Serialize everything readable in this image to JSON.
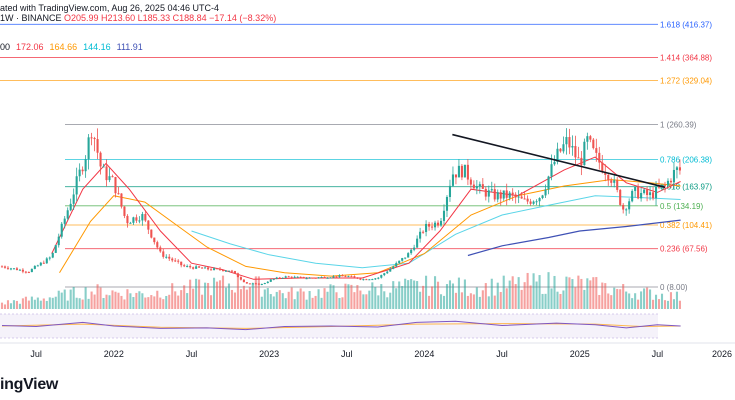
{
  "header": {
    "source": "ated with TradingView.com, Aug 26, 2025 04:46 UTC-4",
    "symbol": "1W · BINANCE",
    "ohlc": "O205.99 H213.60 L185.33 C188.84 −17.14 (−8.32%)"
  },
  "ma_labels": [
    {
      "text": "00",
      "color": "#131722"
    },
    {
      "text": "172.06",
      "color": "#f23645"
    },
    {
      "text": "164.66",
      "color": "#ff9800"
    },
    {
      "text": "144.16",
      "color": "#00bcd4"
    },
    {
      "text": "111.91",
      "color": "#3f51b5"
    }
  ],
  "brand": "ingView",
  "colors": {
    "up": "#26a69a",
    "down": "#ef5350",
    "ma20": "#f23645",
    "ma50": "#ff9800",
    "ma100": "#5ad5e8",
    "ma200": "#3f51b5",
    "rsi": "#7e57c2",
    "rsi_ma": "#ffb74d"
  },
  "chart_data": {
    "type": "candlestick",
    "x_ticks": [
      "Jul",
      "2022",
      "Jul",
      "2023",
      "Jul",
      "2024",
      "Jul",
      "2025",
      "Jul",
      "2026"
    ],
    "fib_levels": [
      {
        "ratio": "1.618",
        "value": 416.37,
        "label": "1.618 (416.37)",
        "color": "#2962ff"
      },
      {
        "ratio": "1.414",
        "value": 364.88,
        "label": "1.414 (364.88)",
        "color": "#f23645"
      },
      {
        "ratio": "1.272",
        "value": 329.04,
        "label": "1.272 (329.04)",
        "color": "#ff9800"
      },
      {
        "ratio": "1",
        "value": 260.39,
        "label": "1 (260.39)",
        "color": "#787b86"
      },
      {
        "ratio": "0.786",
        "value": 206.38,
        "label": "0.786 (206.38)",
        "color": "#00bcd4"
      },
      {
        "ratio": "0.618",
        "value": 163.97,
        "label": "0.618 (163.97)",
        "color": "#089981"
      },
      {
        "ratio": "0.5",
        "value": 134.19,
        "label": "0.5 (134.19)",
        "color": "#4caf50"
      },
      {
        "ratio": "0.382",
        "value": 104.41,
        "label": "0.382 (104.41)",
        "color": "#ff9800"
      },
      {
        "ratio": "0.236",
        "value": 67.56,
        "label": "0.236 (67.56)",
        "color": "#f23645"
      },
      {
        "ratio": "0",
        "value": 8.0,
        "label": "0 (8.00)",
        "color": "#787b86"
      }
    ],
    "price_path": [
      [
        2021.28,
        40
      ],
      [
        2021.45,
        32
      ],
      [
        2021.6,
        55
      ],
      [
        2021.72,
        140
      ],
      [
        2021.82,
        215
      ],
      [
        2021.86,
        258
      ],
      [
        2021.92,
        190
      ],
      [
        2022.0,
        170
      ],
      [
        2022.08,
        110
      ],
      [
        2022.18,
        120
      ],
      [
        2022.3,
        60
      ],
      [
        2022.45,
        40
      ],
      [
        2022.6,
        36
      ],
      [
        2022.75,
        34
      ],
      [
        2022.85,
        14
      ],
      [
        2022.95,
        12
      ],
      [
        2023.02,
        20
      ],
      [
        2023.1,
        24
      ],
      [
        2023.25,
        22
      ],
      [
        2023.4,
        24
      ],
      [
        2023.5,
        25
      ],
      [
        2023.6,
        20
      ],
      [
        2023.7,
        22
      ],
      [
        2023.8,
        40
      ],
      [
        2023.9,
        60
      ],
      [
        2024.0,
        100
      ],
      [
        2024.1,
        110
      ],
      [
        2024.18,
        185
      ],
      [
        2024.25,
        190
      ],
      [
        2024.35,
        160
      ],
      [
        2024.45,
        150
      ],
      [
        2024.55,
        150
      ],
      [
        2024.65,
        140
      ],
      [
        2024.75,
        150
      ],
      [
        2024.85,
        210
      ],
      [
        2024.92,
        235
      ],
      [
        2025.0,
        200
      ],
      [
        2025.05,
        235
      ],
      [
        2025.1,
        210
      ],
      [
        2025.2,
        180
      ],
      [
        2025.28,
        130
      ],
      [
        2025.35,
        155
      ],
      [
        2025.45,
        150
      ],
      [
        2025.55,
        165
      ],
      [
        2025.62,
        190
      ],
      [
        2025.65,
        188.84
      ]
    ],
    "ma20_path": [
      [
        2021.6,
        60
      ],
      [
        2021.8,
        160
      ],
      [
        2021.95,
        200
      ],
      [
        2022.1,
        160
      ],
      [
        2022.3,
        95
      ],
      [
        2022.5,
        45
      ],
      [
        2022.7,
        35
      ],
      [
        2022.9,
        20
      ],
      [
        2023.2,
        22
      ],
      [
        2023.6,
        22
      ],
      [
        2023.9,
        45
      ],
      [
        2024.1,
        95
      ],
      [
        2024.3,
        160
      ],
      [
        2024.6,
        150
      ],
      [
        2024.9,
        190
      ],
      [
        2025.1,
        210
      ],
      [
        2025.3,
        170
      ],
      [
        2025.5,
        155
      ],
      [
        2025.65,
        172
      ]
    ],
    "ma50_path": [
      [
        2021.65,
        30
      ],
      [
        2021.85,
        110
      ],
      [
        2022.0,
        150
      ],
      [
        2022.2,
        140
      ],
      [
        2022.4,
        105
      ],
      [
        2022.6,
        70
      ],
      [
        2022.85,
        40
      ],
      [
        2023.1,
        30
      ],
      [
        2023.4,
        25
      ],
      [
        2023.7,
        30
      ],
      [
        2024.0,
        60
      ],
      [
        2024.3,
        120
      ],
      [
        2024.6,
        150
      ],
      [
        2024.9,
        165
      ],
      [
        2025.2,
        175
      ],
      [
        2025.45,
        170
      ],
      [
        2025.65,
        165
      ]
    ],
    "ma100_path": [
      [
        2022.5,
        95
      ],
      [
        2022.75,
        75
      ],
      [
        2023.0,
        58
      ],
      [
        2023.3,
        45
      ],
      [
        2023.6,
        38
      ],
      [
        2023.9,
        45
      ],
      [
        2024.2,
        90
      ],
      [
        2024.5,
        120
      ],
      [
        2024.8,
        135
      ],
      [
        2025.1,
        150
      ],
      [
        2025.4,
        147
      ],
      [
        2025.65,
        144
      ]
    ],
    "ma200_path": [
      [
        2024.28,
        57
      ],
      [
        2024.5,
        72
      ],
      [
        2024.8,
        85
      ],
      [
        2025.0,
        95
      ],
      [
        2025.3,
        102
      ],
      [
        2025.65,
        112
      ]
    ],
    "trendline": [
      [
        2024.18,
        245
      ],
      [
        2025.55,
        163
      ]
    ],
    "volume_profile": [
      [
        2021.28,
        0.1
      ],
      [
        2021.6,
        0.2
      ],
      [
        2021.85,
        0.3
      ],
      [
        2022.2,
        0.25
      ],
      [
        2022.85,
        0.45
      ],
      [
        2023.1,
        0.25
      ],
      [
        2023.8,
        0.35
      ],
      [
        2024.1,
        0.4
      ],
      [
        2024.3,
        0.35
      ],
      [
        2024.85,
        0.45
      ],
      [
        2025.05,
        0.4
      ],
      [
        2025.3,
        0.3
      ],
      [
        2025.65,
        0.2
      ]
    ],
    "rsi_path": [
      [
        2021.28,
        52
      ],
      [
        2021.5,
        48
      ],
      [
        2021.8,
        65
      ],
      [
        2022.0,
        50
      ],
      [
        2022.3,
        40
      ],
      [
        2022.6,
        42
      ],
      [
        2022.85,
        35
      ],
      [
        2023.1,
        48
      ],
      [
        2023.4,
        50
      ],
      [
        2023.7,
        46
      ],
      [
        2023.95,
        65
      ],
      [
        2024.2,
        70
      ],
      [
        2024.5,
        52
      ],
      [
        2024.85,
        62
      ],
      [
        2025.1,
        55
      ],
      [
        2025.3,
        42
      ],
      [
        2025.5,
        55
      ],
      [
        2025.65,
        50
      ]
    ],
    "rsi_ma_path": [
      [
        2021.28,
        50
      ],
      [
        2021.8,
        58
      ],
      [
        2022.3,
        45
      ],
      [
        2022.85,
        40
      ],
      [
        2023.4,
        48
      ],
      [
        2023.95,
        58
      ],
      [
        2024.5,
        60
      ],
      [
        2025.1,
        58
      ],
      [
        2025.4,
        48
      ],
      [
        2025.65,
        50
      ]
    ]
  }
}
